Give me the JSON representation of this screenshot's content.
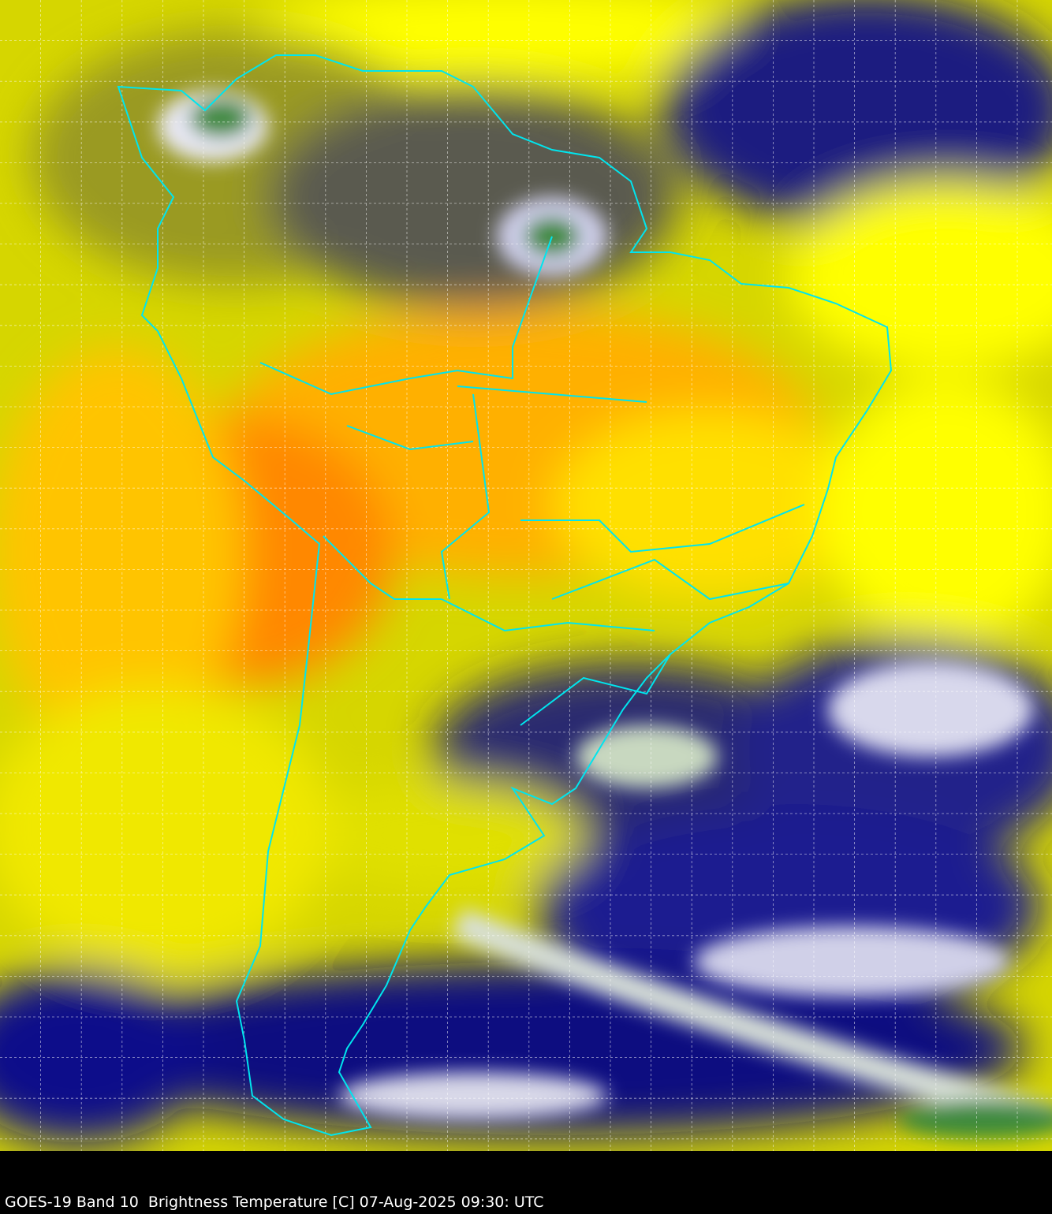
{
  "caption": "GOES-19 Band 10  Brightness Temperature [C] 07-Aug-2025 09:30: UTC",
  "colors": {
    "warm_dry": "#ff9a00",
    "mid": "#f5f500",
    "moist": "#9a9a10",
    "cold_cloud": "#000080",
    "coldest": "#3c8a3c",
    "borders": "#00e5ee",
    "grid": "#ffffff"
  }
}
